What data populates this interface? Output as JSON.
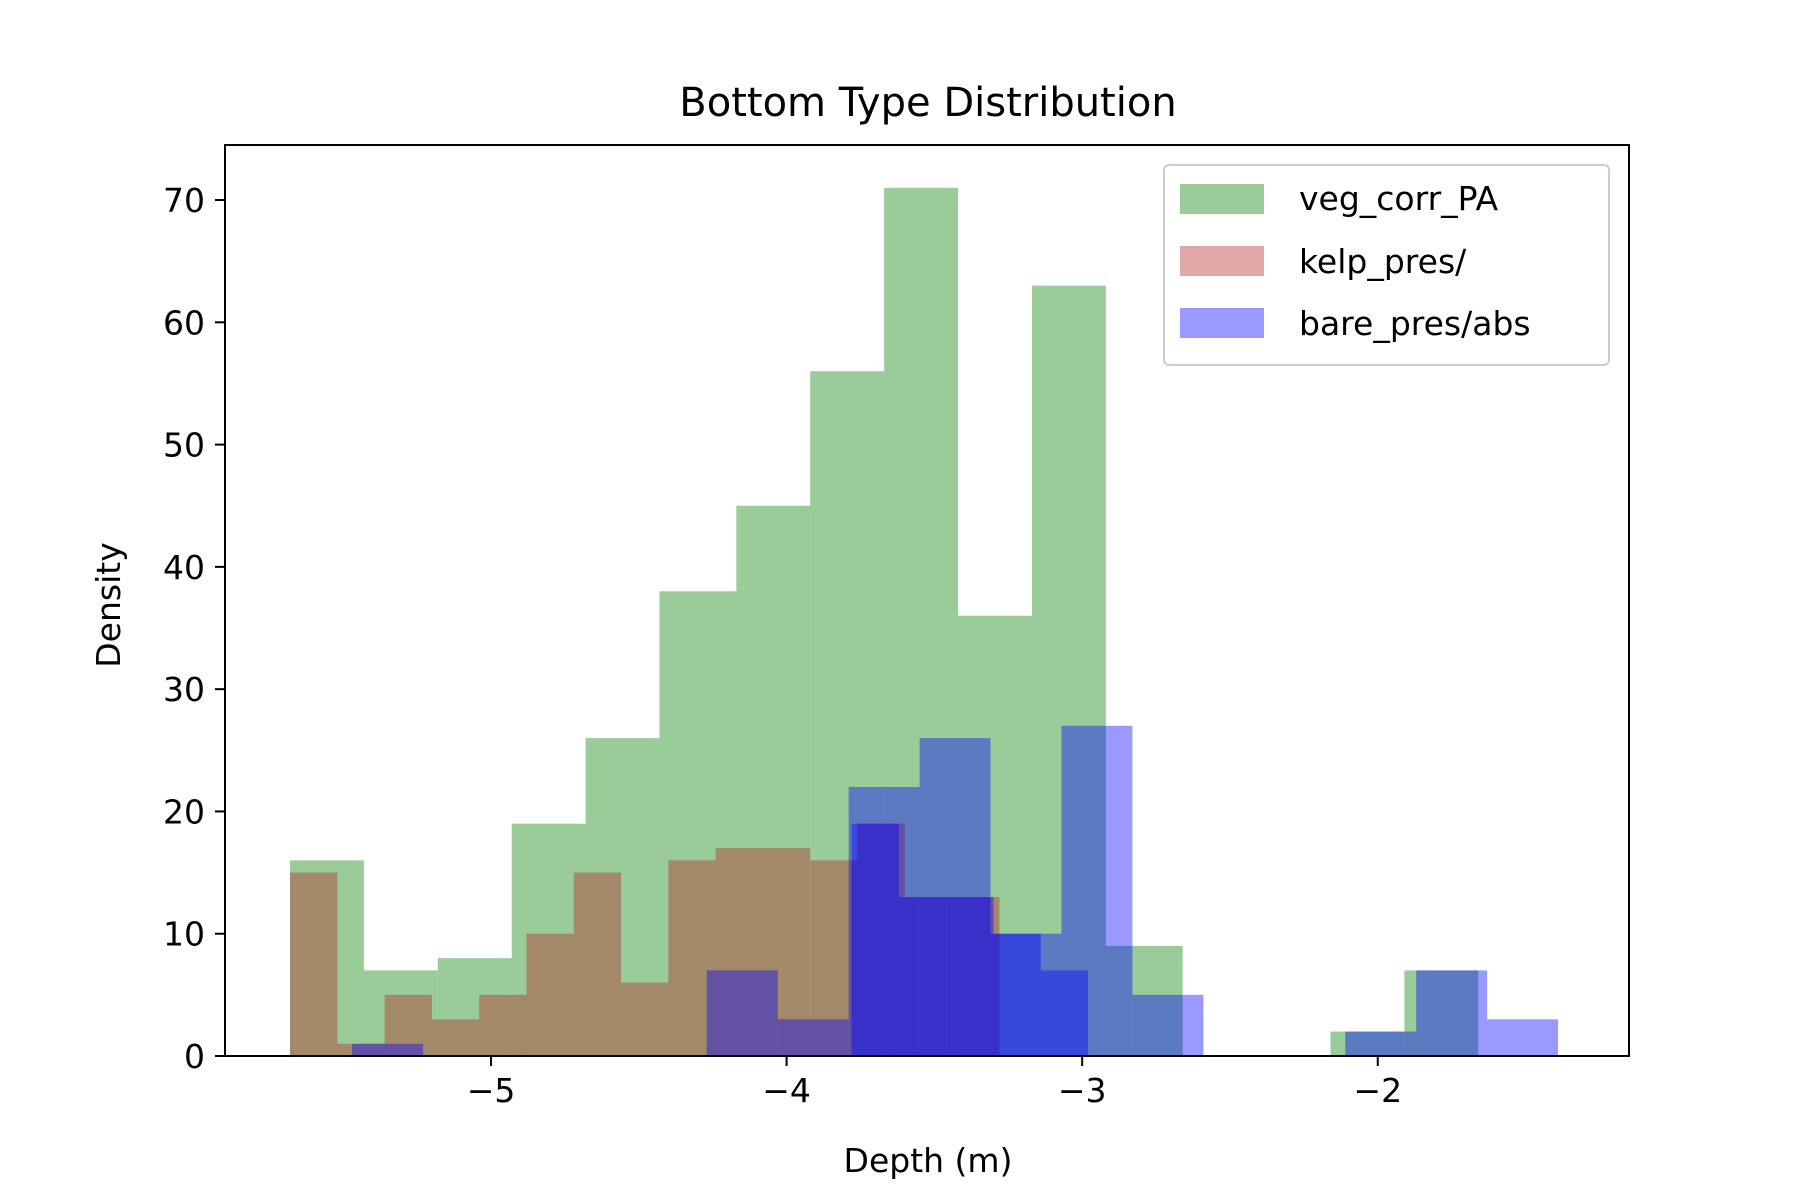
{
  "chart_data": {
    "type": "bar",
    "subtype": "overlapping-histogram",
    "title": "Bottom Type Distribution",
    "xlabel": "Depth (m)",
    "ylabel": "Density",
    "xlim": [
      -5.9,
      -1.15
    ],
    "ylim": [
      0,
      74.5
    ],
    "xticks": [
      -5,
      -4,
      -3,
      -2
    ],
    "xtick_labels": [
      "−5",
      "−4",
      "−3",
      "−2"
    ],
    "yticks": [
      0,
      10,
      20,
      30,
      40,
      50,
      60,
      70
    ],
    "ytick_labels": [
      "0",
      "10",
      "20",
      "30",
      "40",
      "50",
      "60",
      "70"
    ],
    "grid": false,
    "legend_position": "top-right",
    "series": [
      {
        "name": "veg_corr_PA",
        "color": "#008000",
        "opacity": 0.4,
        "bins": [
          -5.68,
          -5.43,
          -5.18,
          -4.93,
          -4.68,
          -4.43,
          -4.17,
          -3.92,
          -3.67,
          -3.42,
          -3.17,
          -2.92,
          -2.66,
          -2.41,
          -2.16,
          -1.91,
          -1.66
        ],
        "values": [
          16,
          7,
          8,
          19,
          26,
          38,
          45,
          56,
          71,
          36,
          63,
          9,
          0,
          0,
          2,
          7
        ]
      },
      {
        "name": "kelp_pres/",
        "color": "#b22222",
        "opacity": 0.4,
        "bins": [
          -5.68,
          -5.52,
          -5.36,
          -5.2,
          -5.04,
          -4.88,
          -4.72,
          -4.56,
          -4.4,
          -4.24,
          -4.08,
          -3.92,
          -3.76,
          -3.6,
          -3.44,
          -3.28
        ],
        "values": [
          15,
          1,
          5,
          3,
          5,
          10,
          15,
          6,
          16,
          17,
          17,
          16,
          19,
          13,
          13
        ]
      },
      {
        "name": "bare_pres/abs",
        "color": "#0000ff",
        "opacity": 0.4,
        "bins": [
          -5.47,
          -5.23,
          -4.99,
          -4.75,
          -4.51,
          -4.27,
          -4.03,
          -3.79,
          -3.55,
          -3.31,
          -3.07,
          -2.83,
          -2.59,
          -2.35,
          -2.11,
          -1.87,
          -1.63,
          -1.39
        ],
        "values": [
          1,
          0,
          0,
          0,
          0,
          7,
          3,
          22,
          26,
          10,
          27,
          5,
          0,
          0,
          2,
          7,
          3
        ]
      },
      {
        "name": "",
        "color": "#0000ff",
        "opacity": 0.4,
        "bins": [
          -3.78,
          -3.62,
          -3.46,
          -3.3,
          -3.14,
          -2.98
        ],
        "values": [
          19,
          13,
          13,
          10,
          7
        ]
      }
    ]
  }
}
